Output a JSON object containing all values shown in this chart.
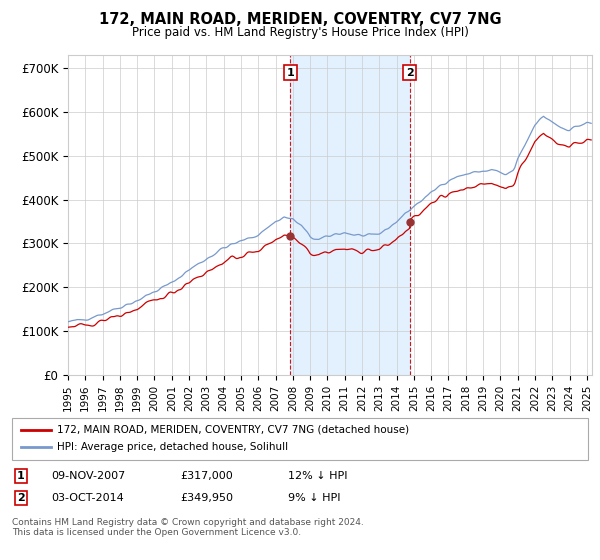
{
  "title": "172, MAIN ROAD, MERIDEN, COVENTRY, CV7 7NG",
  "subtitle": "Price paid vs. HM Land Registry's House Price Index (HPI)",
  "ylabel_ticks": [
    "£0",
    "£100K",
    "£200K",
    "£300K",
    "£400K",
    "£500K",
    "£600K",
    "£700K"
  ],
  "ytick_values": [
    0,
    100000,
    200000,
    300000,
    400000,
    500000,
    600000,
    700000
  ],
  "ylim": [
    0,
    730000
  ],
  "xlim_start": 1995.0,
  "xlim_end": 2025.3,
  "sale1_x": 2007.86,
  "sale1_y": 317000,
  "sale2_x": 2014.75,
  "sale2_y": 349950,
  "sale1_date": "09-NOV-2007",
  "sale1_price": "£317,000",
  "sale1_hpi_diff": "12% ↓ HPI",
  "sale2_date": "03-OCT-2014",
  "sale2_price": "£349,950",
  "sale2_hpi_diff": "9% ↓ HPI",
  "legend_line1": "172, MAIN ROAD, MERIDEN, COVENTRY, CV7 7NG (detached house)",
  "legend_line2": "HPI: Average price, detached house, Solihull",
  "footer": "Contains HM Land Registry data © Crown copyright and database right 2024.\nThis data is licensed under the Open Government Licence v3.0.",
  "line_color_red": "#cc0000",
  "line_color_blue": "#7799cc",
  "shade_color": "#ddeeff",
  "vline_color": "#cc0000",
  "background_color": "#ffffff",
  "grid_color": "#cccccc"
}
